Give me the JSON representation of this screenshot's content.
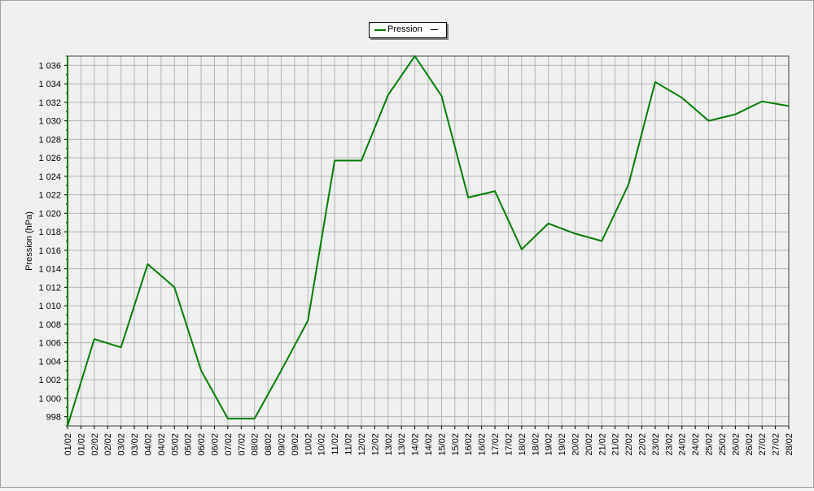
{
  "chart_data": {
    "type": "line",
    "title": "",
    "xlabel": "",
    "ylabel": "Pression (hPa)",
    "ylim": [
      997,
      1037
    ],
    "yticks": [
      998,
      1000,
      1002,
      1004,
      1006,
      1008,
      1010,
      1012,
      1014,
      1016,
      1018,
      1020,
      1022,
      1024,
      1026,
      1028,
      1030,
      1032,
      1034,
      1036
    ],
    "ytick_labels": [
      "998",
      "1 000",
      "1 002",
      "1 004",
      "1 006",
      "1 008",
      "1 010",
      "1 012",
      "1 014",
      "1 016",
      "1 018",
      "1 020",
      "1 022",
      "1 024",
      "1 026",
      "1 028",
      "1 030",
      "1 032",
      "1 034",
      "1 036"
    ],
    "x_labels": [
      "01/02",
      "01/02",
      "02/02",
      "02/02",
      "03/02",
      "03/02",
      "04/02",
      "04/02",
      "05/02",
      "05/02",
      "06/02",
      "06/02",
      "07/02",
      "07/02",
      "08/02",
      "08/02",
      "09/02",
      "09/02",
      "10/02",
      "10/02",
      "11/02",
      "11/02",
      "12/02",
      "12/02",
      "13/02",
      "13/02",
      "14/02",
      "14/02",
      "15/02",
      "15/02",
      "16/02",
      "16/02",
      "17/02",
      "17/02",
      "18/02",
      "18/02",
      "19/02",
      "19/02",
      "20/02",
      "20/02",
      "21/02",
      "21/02",
      "22/02",
      "22/02",
      "23/02",
      "23/02",
      "24/02",
      "24/02",
      "25/02",
      "25/02",
      "26/02",
      "26/02",
      "27/02",
      "27/02",
      "28/02"
    ],
    "grid": true,
    "legend_position": "top-center",
    "series": [
      {
        "name": "Pression",
        "color": "#007f00",
        "legend_marker": "—",
        "x_index": [
          0,
          2,
          4,
          6,
          8,
          10,
          12,
          14,
          16,
          18,
          20,
          22,
          24,
          26,
          28,
          30,
          32,
          34,
          36,
          38,
          40,
          42,
          44,
          46,
          48,
          50,
          52,
          54
        ],
        "values": [
          997.0,
          1006.4,
          1005.5,
          1014.5,
          1012.0,
          1003.0,
          997.8,
          997.8,
          1003.0,
          1008.4,
          1025.7,
          1025.7,
          1032.8,
          1037.0,
          1032.7,
          1021.7,
          1022.4,
          1016.1,
          1018.9,
          1017.8,
          1017.0,
          1023.1,
          1034.2,
          1032.5,
          1030.0,
          1030.7,
          1032.1,
          1031.6
        ]
      }
    ]
  }
}
